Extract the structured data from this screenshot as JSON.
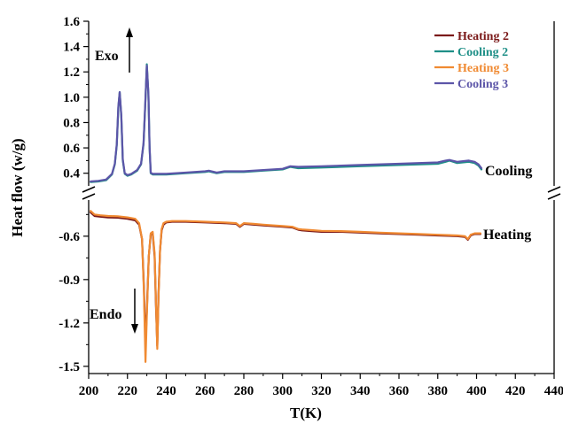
{
  "chart_data": {
    "type": "line",
    "title": "",
    "xlabel": "T(K)",
    "ylabel": "Heat flow (w/g)",
    "xlim": [
      200,
      440
    ],
    "x_ticks": [
      200,
      220,
      240,
      260,
      280,
      300,
      320,
      340,
      360,
      380,
      400,
      420,
      440
    ],
    "upper_panel": {
      "label": "Cooling",
      "ylim": [
        0.3,
        1.6
      ],
      "y_ticks": [
        "0.4",
        "0.6",
        "0.8",
        "1.0",
        "1.2",
        "1.4",
        "1.6"
      ]
    },
    "lower_panel": {
      "label": "Heating",
      "ylim": [
        -1.55,
        -0.35
      ],
      "y_ticks": [
        "-0.6",
        "-0.9",
        "-1.2",
        "-1.5"
      ]
    },
    "legend": {
      "position": "top-right"
    },
    "annotations": {
      "exo": "Exo",
      "endo": "Endo"
    },
    "series": [
      {
        "name": "Heating 2",
        "color": "#7b1a1a",
        "panel": "lower",
        "x": [
          201,
          203,
          206,
          210,
          215,
          220,
          224,
          226,
          227.5,
          228.5,
          229.3,
          230,
          231,
          232,
          233,
          234,
          234.7,
          235.4,
          236,
          236.8,
          237.6,
          238.6,
          240,
          243,
          250,
          260,
          270,
          276,
          278,
          280,
          285,
          290,
          300,
          305,
          308,
          310,
          315,
          320,
          330,
          340,
          350,
          360,
          370,
          380,
          390,
          394,
          395.5,
          397,
          399,
          401,
          402
        ],
        "y": [
          -0.435,
          -0.46,
          -0.465,
          -0.47,
          -0.472,
          -0.48,
          -0.49,
          -0.52,
          -0.62,
          -0.95,
          -1.35,
          -1.12,
          -0.74,
          -0.59,
          -0.58,
          -0.74,
          -1.08,
          -1.36,
          -1.0,
          -0.7,
          -0.56,
          -0.52,
          -0.505,
          -0.5,
          -0.5,
          -0.505,
          -0.51,
          -0.515,
          -0.535,
          -0.515,
          -0.52,
          -0.525,
          -0.535,
          -0.54,
          -0.555,
          -0.56,
          -0.565,
          -0.57,
          -0.57,
          -0.575,
          -0.58,
          -0.585,
          -0.59,
          -0.595,
          -0.6,
          -0.605,
          -0.625,
          -0.595,
          -0.585,
          -0.585,
          -0.585
        ]
      },
      {
        "name": "Cooling 2",
        "color": "#1e8f87",
        "panel": "upper",
        "x": [
          201,
          205,
          209,
          212,
          213.5,
          214.5,
          215.3,
          216,
          216.8,
          217.6,
          218.6,
          220,
          222,
          225,
          227,
          228.3,
          229.2,
          230,
          230.8,
          231.4,
          232,
          233,
          240,
          250,
          260,
          262,
          266,
          270,
          280,
          290,
          300,
          304,
          308,
          320,
          340,
          360,
          380,
          384,
          386,
          390,
          396,
          399,
          401,
          402.5
        ],
        "y": [
          0.33,
          0.335,
          0.345,
          0.39,
          0.47,
          0.62,
          0.92,
          1.04,
          0.85,
          0.5,
          0.395,
          0.38,
          0.39,
          0.42,
          0.47,
          0.63,
          0.95,
          1.26,
          1.02,
          0.6,
          0.4,
          0.39,
          0.39,
          0.4,
          0.41,
          0.415,
          0.4,
          0.41,
          0.41,
          0.42,
          0.43,
          0.45,
          0.44,
          0.445,
          0.455,
          0.465,
          0.475,
          0.49,
          0.5,
          0.48,
          0.49,
          0.48,
          0.46,
          0.43
        ]
      },
      {
        "name": "Heating 3",
        "color": "#f08a32",
        "panel": "lower",
        "x": [
          201,
          203,
          206,
          210,
          215,
          220,
          224,
          226,
          227.5,
          228.5,
          229.3,
          230,
          231,
          232,
          233,
          234,
          234.7,
          235.4,
          236,
          236.8,
          237.6,
          238.6,
          240,
          243,
          250,
          260,
          270,
          276,
          278,
          280,
          285,
          290,
          300,
          305,
          308,
          310,
          315,
          320,
          330,
          340,
          350,
          360,
          370,
          380,
          390,
          394,
          395.5,
          397,
          399,
          401,
          402
        ],
        "y": [
          -0.425,
          -0.45,
          -0.455,
          -0.46,
          -0.462,
          -0.47,
          -0.48,
          -0.51,
          -0.62,
          -0.98,
          -1.47,
          -1.15,
          -0.74,
          -0.58,
          -0.57,
          -0.72,
          -1.05,
          -1.38,
          -1.02,
          -0.7,
          -0.55,
          -0.51,
          -0.5,
          -0.495,
          -0.495,
          -0.5,
          -0.505,
          -0.51,
          -0.53,
          -0.51,
          -0.515,
          -0.52,
          -0.53,
          -0.535,
          -0.55,
          -0.553,
          -0.558,
          -0.563,
          -0.565,
          -0.57,
          -0.575,
          -0.58,
          -0.585,
          -0.59,
          -0.595,
          -0.6,
          -0.62,
          -0.59,
          -0.58,
          -0.58,
          -0.58
        ]
      },
      {
        "name": "Cooling 3",
        "color": "#5c55a8",
        "panel": "upper",
        "x": [
          201,
          205,
          209,
          212,
          213.5,
          214.5,
          215.3,
          216,
          216.8,
          217.6,
          218.6,
          220,
          222,
          225,
          227,
          228.3,
          229.2,
          230,
          230.8,
          231.4,
          232,
          233,
          240,
          250,
          260,
          262,
          266,
          270,
          280,
          290,
          300,
          304,
          308,
          320,
          340,
          360,
          380,
          384,
          386,
          390,
          396,
          399,
          401,
          402.5
        ],
        "y": [
          0.335,
          0.34,
          0.35,
          0.395,
          0.475,
          0.63,
          0.93,
          1.04,
          0.86,
          0.51,
          0.4,
          0.385,
          0.395,
          0.425,
          0.475,
          0.64,
          0.96,
          1.25,
          1.03,
          0.61,
          0.405,
          0.395,
          0.395,
          0.405,
          0.415,
          0.42,
          0.405,
          0.415,
          0.415,
          0.425,
          0.435,
          0.455,
          0.45,
          0.455,
          0.465,
          0.475,
          0.485,
          0.5,
          0.505,
          0.49,
          0.5,
          0.49,
          0.47,
          0.44
        ]
      }
    ]
  }
}
